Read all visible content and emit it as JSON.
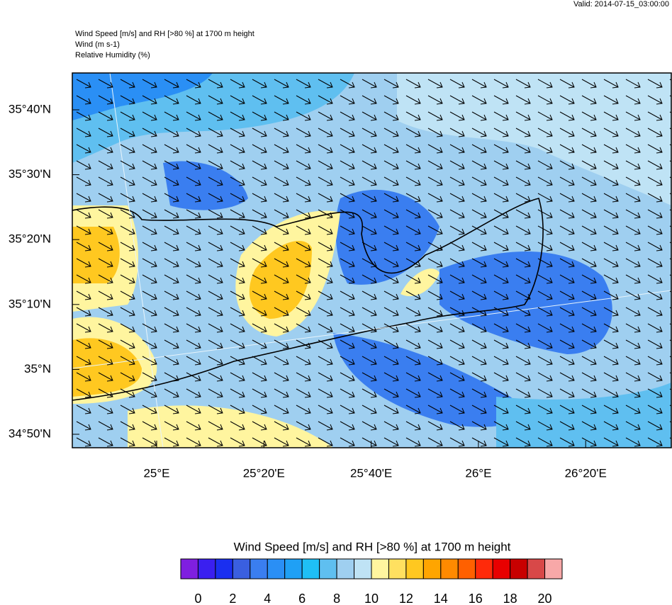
{
  "valid": "Valid: 2014-07-15_03:00:00",
  "header": [
    "Wind Speed [m/s] and RH [>80 %] at 1700 m height",
    "Wind   (m s-1)",
    "Relative Humidity   (%)"
  ],
  "map": {
    "lat_labels": [
      "35°40'N",
      "35°30'N",
      "35°20'N",
      "35°10'N",
      "35°N",
      "34°50'N"
    ],
    "lon_labels": [
      "25°E",
      "25°20'E",
      "25°40'E",
      "26°E",
      "26°20'E"
    ]
  },
  "colorbar": {
    "title": "Wind Speed [m/s] and RH [>80 %] at 1700 m height",
    "colors": [
      "#7f1fe0",
      "#3a1ff0",
      "#1a2ff0",
      "#3a5fe0",
      "#3a7ef0",
      "#2a8ff5",
      "#1fa0f5",
      "#1fbff5",
      "#5fbff0",
      "#9fcff0",
      "#bfe3f5",
      "#fff59f",
      "#ffe060",
      "#ffc820",
      "#ffa500",
      "#ff8a00",
      "#ff6000",
      "#ff2a0a",
      "#e80000",
      "#c80000",
      "#d84848",
      "#f8a8a8"
    ],
    "labels": [
      0,
      2,
      4,
      6,
      8,
      10,
      12,
      14,
      16,
      18,
      20
    ]
  }
}
